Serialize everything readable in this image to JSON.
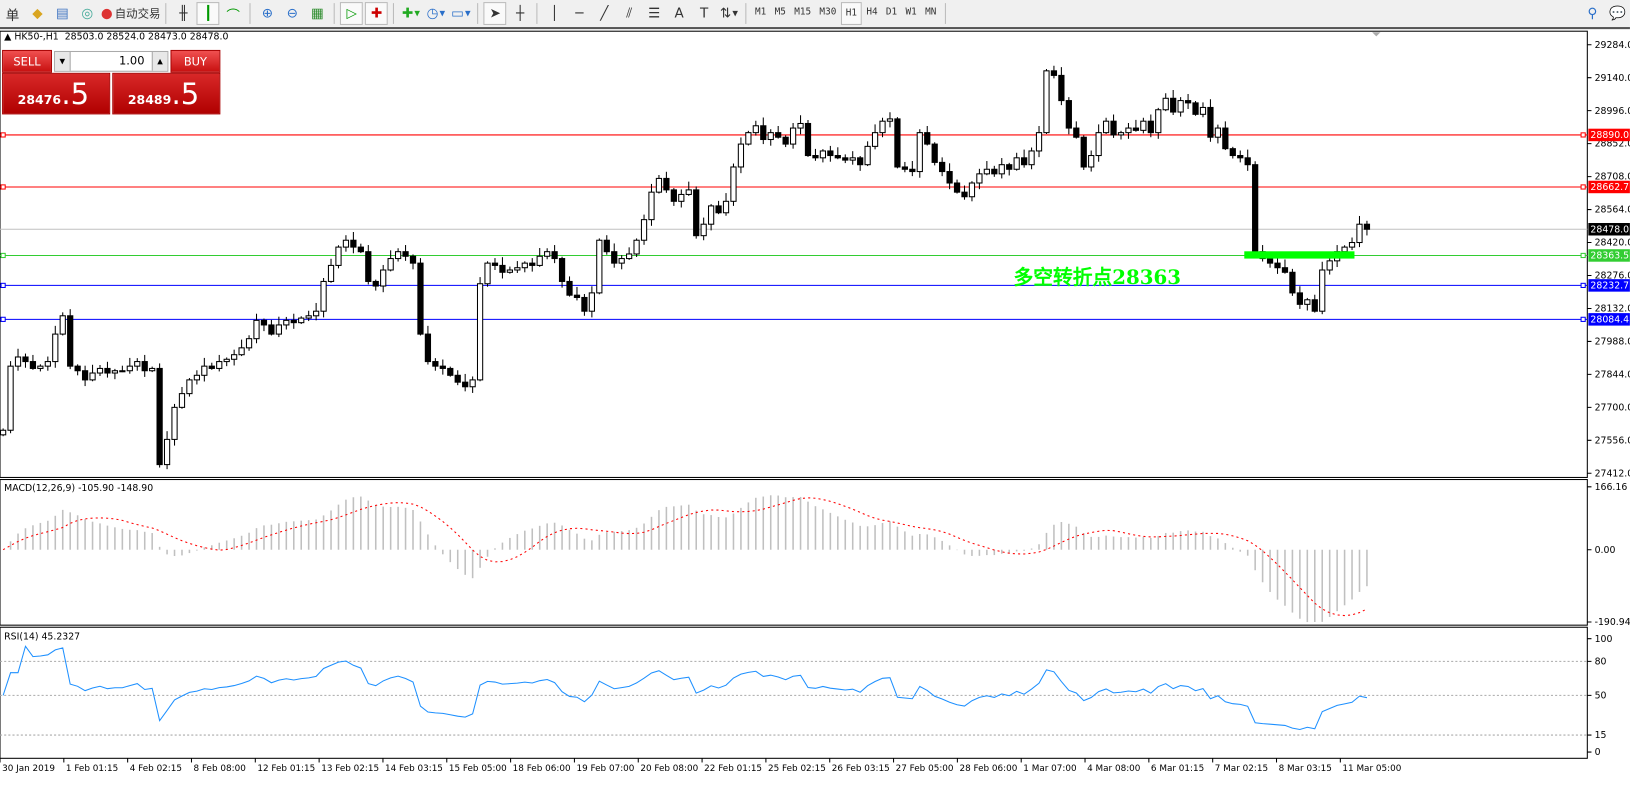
{
  "toolbar": {
    "partial_label": "单",
    "autotrade_label": "自动交易",
    "timeframes": [
      "M1",
      "M5",
      "M15",
      "M30",
      "H1",
      "H4",
      "D1",
      "W1",
      "MN"
    ],
    "active_timeframe": "H1"
  },
  "chart_header": {
    "symbol": "HK50-,H1",
    "ohlc": "28503.0 28524.0 28473.0 28478.0"
  },
  "trade_panel": {
    "sell_label": "SELL",
    "buy_label": "BUY",
    "lot": "1.00",
    "sell_price_main": "28476",
    "sell_price_frac": ".5",
    "buy_price_main": "28489",
    "buy_price_frac": ".5"
  },
  "annotation": {
    "text": "多空转折点28363",
    "color": "#00ff00"
  },
  "chart_data": {
    "type": "candlestick",
    "price_axis_ticks": [
      "29284.0",
      "29140.0",
      "28996.0",
      "28852.0",
      "28708.0",
      "28564.0",
      "28420.0",
      "28276.0",
      "28132.0",
      "27988.0",
      "27844.0",
      "27700.0",
      "27556.0",
      "27412.0"
    ],
    "ylim": [
      27412,
      29284
    ],
    "levels": [
      {
        "value": 28890.0,
        "label": "28890.0",
        "color": "#ff0000"
      },
      {
        "value": 28662.7,
        "label": "28662.7",
        "color": "#ff0000"
      },
      {
        "value": 28478.0,
        "label": "28478.0",
        "color": "#c0c0c0",
        "label_bg": "#000000"
      },
      {
        "value": 28363.5,
        "label": "28363.5",
        "color": "#32cd32"
      },
      {
        "value": 28232.7,
        "label": "28232.7",
        "color": "#0000ff"
      },
      {
        "value": 28084.4,
        "label": "28084.4",
        "color": "#0000ff"
      }
    ],
    "close": [
      27600,
      27880,
      27920,
      27900,
      27870,
      27880,
      27900,
      28020,
      28100,
      27880,
      27860,
      27820,
      27850,
      27870,
      27850,
      27860,
      27860,
      27880,
      27900,
      27860,
      27870,
      27450,
      27560,
      27700,
      27760,
      27820,
      27840,
      27880,
      27870,
      27900,
      27910,
      27930,
      27960,
      28000,
      28080,
      28060,
      28020,
      28060,
      28080,
      28070,
      28090,
      28100,
      28120,
      28250,
      28320,
      28400,
      28430,
      28400,
      28380,
      28250,
      28230,
      28300,
      28350,
      28380,
      28360,
      28330,
      28020,
      27900,
      27880,
      27870,
      27840,
      27810,
      27790,
      27820,
      28240,
      28330,
      28320,
      28290,
      28300,
      28310,
      28330,
      28320,
      28360,
      28380,
      28350,
      28250,
      28190,
      28180,
      28120,
      28200,
      28430,
      28380,
      28330,
      28350,
      28370,
      28430,
      28520,
      28640,
      28700,
      28650,
      28600,
      28630,
      28650,
      28450,
      28500,
      28580,
      28550,
      28600,
      28750,
      28850,
      28900,
      28930,
      28870,
      28900,
      28880,
      28850,
      28920,
      28940,
      28800,
      28790,
      28820,
      28800,
      28790,
      28780,
      28790,
      28760,
      28840,
      28900,
      28950,
      28960,
      28750,
      28740,
      28730,
      28900,
      28850,
      28770,
      28730,
      28680,
      28640,
      28620,
      28680,
      28720,
      28740,
      28720,
      28760,
      28740,
      28790,
      28760,
      28820,
      28900,
      29170,
      29150,
      29040,
      28920,
      28880,
      28750,
      28800,
      28900,
      28950,
      28890,
      28900,
      28920,
      28910,
      28950,
      28900,
      29000,
      29050,
      28990,
      29040,
      29030,
      28980,
      29010,
      28880,
      28920,
      28830,
      28800,
      28790,
      28760,
      28380,
      28350,
      28330,
      28310,
      28290,
      28200,
      28150,
      28170,
      28120,
      28300,
      28340,
      28380,
      28400,
      28420,
      28500,
      28478
    ],
    "time_labels": [
      "30 Jan 2019",
      "1 Feb 01:15",
      "4 Feb 02:15",
      "8 Feb 08:00",
      "12 Feb 01:15",
      "13 Feb 02:15",
      "14 Feb 03:15",
      "15 Feb 05:00",
      "18 Feb 06:00",
      "19 Feb 07:00",
      "20 Feb 08:00",
      "22 Feb 01:15",
      "25 Feb 02:15",
      "26 Feb 03:15",
      "27 Feb 05:00",
      "28 Feb 06:00",
      "1 Mar 07:00",
      "4 Mar 08:00",
      "6 Mar 01:15",
      "7 Mar 02:15",
      "8 Mar 03:15",
      "11 Mar 05:00"
    ],
    "macd": {
      "label": "MACD(12,26,9) -105.90 -148.90",
      "ticks": [
        "166.16",
        "0.00",
        "-190.94"
      ],
      "ylim": [
        -190.94,
        166.16
      ],
      "histogram_color": "#c0c0c0",
      "signal_color": "#ff0000"
    },
    "rsi": {
      "label": "RSI(14) 45.2327",
      "ticks": [
        "100",
        "80",
        "50",
        "15",
        "0"
      ],
      "levels": [
        80,
        50,
        15
      ],
      "ylim": [
        0,
        100
      ],
      "color": "#1e90ff"
    }
  }
}
